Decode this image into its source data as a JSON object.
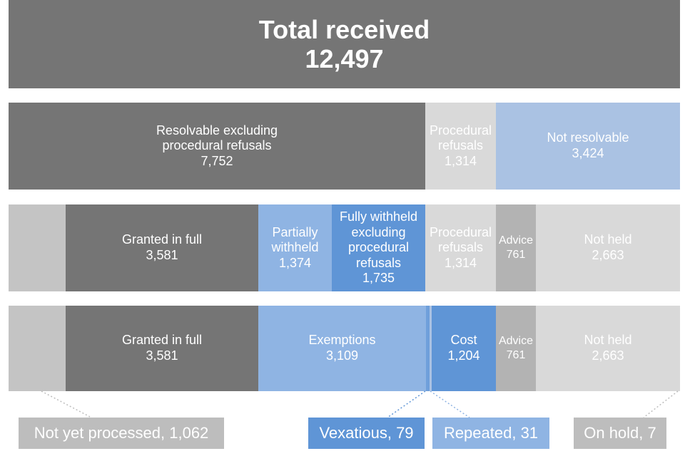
{
  "total": {
    "label": "Total received",
    "value": "12,497"
  },
  "row1": {
    "resolvable_label": "Resolvable excluding procedural refusals",
    "resolvable_value": "7,752",
    "procedural_label": "Procedural refusals",
    "procedural_value": "1,314",
    "not_resolvable_label": "Not resolvable",
    "not_resolvable_value": "3,424"
  },
  "row2": {
    "granted_label": "Granted in full",
    "granted_value": "3,581",
    "partial_label": "Partially withheld",
    "partial_value": "1,374",
    "fully_label": "Fully withheld excluding procedural refusals",
    "fully_value": "1,735",
    "procedural_label": "Procedural refusals",
    "procedural_value": "1,314",
    "advice_label": "Advice",
    "advice_value": "761",
    "not_held_label": "Not held",
    "not_held_value": "2,663"
  },
  "row3": {
    "granted_label": "Granted in full",
    "granted_value": "3,581",
    "exemptions_label": "Exemptions",
    "exemptions_value": "3,109",
    "cost_label": "Cost",
    "cost_value": "1,204",
    "advice_label": "Advice",
    "advice_value": "761",
    "not_held_label": "Not held",
    "not_held_value": "2,663"
  },
  "callouts": {
    "not_yet_processed": "Not yet processed, 1,062",
    "vexatious": "Vexatious, 79",
    "repeated": "Repeated, 31",
    "on_hold": "On hold, 7"
  },
  "colors": {
    "dark_gray": "#757575",
    "light_gray": "#d9d9d9",
    "pale_blue": "#aac2e3",
    "mid_blue": "#8fb4e3",
    "strong_blue": "#5f95d6"
  }
}
